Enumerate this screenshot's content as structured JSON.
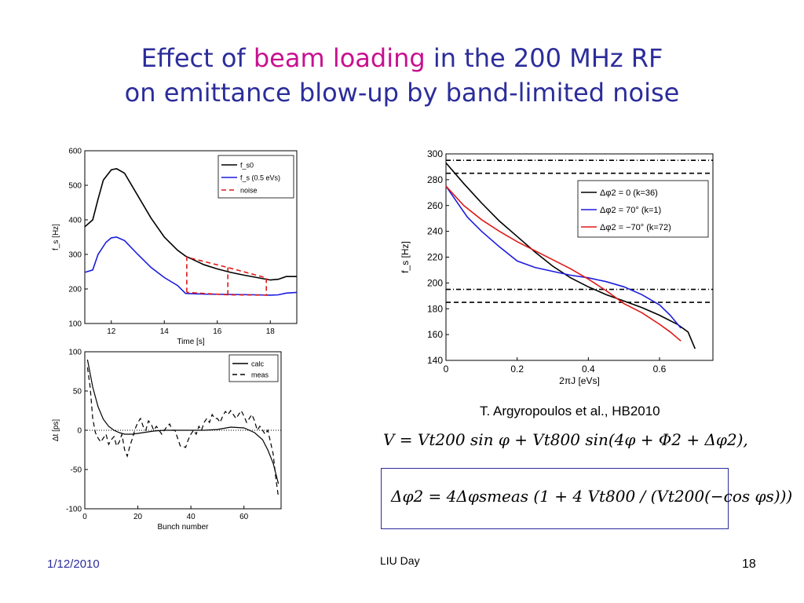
{
  "slide": {
    "title_line1_pre": "Effect of ",
    "title_line1_highlight": "beam loading",
    "title_line1_post": " in the 200 MHz RF",
    "title_line2": "on emittance blow-up by band-limited noise",
    "citation": "T. Argyropoulos et al., HB2010",
    "equation1": "V = Vt200 sin φ + Vt800 sin(4φ + Φ2 + Δφ2),",
    "equation2": "Δφ2 = 4Δφsmeas (1 + 4 Vt800 / (Vt200(−cos φs)))",
    "footer_date": "1/12/2010",
    "footer_center": "LIU Day",
    "footer_page": "18"
  },
  "chart_data": [
    {
      "type": "line",
      "xlabel": "Time [s]",
      "ylabel": "f_s [Hz]",
      "xlim": [
        11,
        19
      ],
      "ylim": [
        100,
        600
      ],
      "xticks": [
        12,
        14,
        16,
        18
      ],
      "yticks": [
        100,
        200,
        300,
        400,
        500,
        600
      ],
      "legend_position": "top-right",
      "series": [
        {
          "name": "f_s0",
          "color": "#000000",
          "dash": "solid",
          "x": [
            11.0,
            11.3,
            11.5,
            11.7,
            12.0,
            12.2,
            12.5,
            13.0,
            13.5,
            14.0,
            14.5,
            14.8,
            15.5,
            16.0,
            16.5,
            17.0,
            17.5,
            18.0,
            18.3,
            18.6,
            19.0
          ],
          "y": [
            380,
            400,
            460,
            515,
            545,
            548,
            535,
            470,
            405,
            350,
            312,
            295,
            270,
            258,
            248,
            240,
            233,
            226,
            228,
            236,
            236
          ]
        },
        {
          "name": "f_s (0.5 eVs)",
          "color": "#1c1cdf",
          "dash": "solid",
          "x": [
            11.0,
            11.3,
            11.5,
            11.8,
            12.0,
            12.2,
            12.5,
            13.0,
            13.5,
            14.0,
            14.5,
            14.8,
            15.5,
            16.5,
            17.5,
            18.0,
            18.3,
            18.6,
            19.0
          ],
          "y": [
            248,
            255,
            300,
            335,
            348,
            350,
            340,
            300,
            262,
            233,
            210,
            187,
            185,
            184,
            183,
            182,
            183,
            188,
            190
          ]
        },
        {
          "name": "noise",
          "color": "#e01818",
          "dash": "dashed",
          "x": [
            14.85,
            14.85,
            16.4,
            17.85,
            17.85,
            16.4,
            14.85
          ],
          "y": [
            190,
            292,
            262,
            232,
            182,
            183,
            190
          ]
        },
        {
          "name": "",
          "color": "#e01818",
          "dash": "dashed",
          "x": [
            16.4,
            16.4
          ],
          "y": [
            183,
            262
          ]
        }
      ]
    },
    {
      "type": "line",
      "xlabel": "Bunch number",
      "ylabel": "Δt [ps]",
      "xlim": [
        0,
        74
      ],
      "ylim": [
        -100,
        100
      ],
      "xticks": [
        0,
        20,
        40,
        60
      ],
      "yticks": [
        -100,
        -50,
        0,
        50,
        100
      ],
      "legend_position": "top-right",
      "series": [
        {
          "name": "calc",
          "color": "#000000",
          "dash": "solid",
          "x": [
            1,
            3,
            5,
            7,
            9,
            11,
            13,
            15,
            18,
            22,
            26,
            30,
            35,
            40,
            45,
            50,
            55,
            60,
            64,
            67,
            69,
            71,
            73
          ],
          "y": [
            90,
            55,
            30,
            14,
            5,
            0,
            -3,
            -5,
            -5,
            -3,
            -1,
            0,
            0,
            0,
            0,
            1,
            4,
            3,
            -3,
            -12,
            -25,
            -42,
            -68
          ]
        },
        {
          "name": "meas",
          "color": "#000000",
          "dash": "dashed",
          "x": [
            1,
            2,
            3,
            4,
            5,
            6,
            7,
            8,
            9,
            10,
            11,
            12,
            13,
            14,
            15,
            16,
            17,
            18,
            19,
            20,
            21,
            22,
            23,
            24,
            25,
            26,
            27,
            28,
            29,
            30,
            31,
            32,
            33,
            34,
            35,
            36,
            37,
            38,
            39,
            40,
            41,
            42,
            43,
            44,
            45,
            46,
            47,
            48,
            49,
            50,
            51,
            52,
            53,
            54,
            55,
            56,
            57,
            58,
            59,
            60,
            61,
            62,
            63,
            64,
            65,
            66,
            67,
            68,
            69,
            70,
            71,
            72,
            73
          ],
          "y": [
            80,
            55,
            15,
            -3,
            -10,
            -15,
            -10,
            -5,
            -18,
            -12,
            -8,
            -20,
            -15,
            -5,
            -25,
            -33,
            -20,
            -10,
            2,
            10,
            15,
            5,
            0,
            12,
            8,
            0,
            5,
            0,
            -5,
            0,
            5,
            8,
            0,
            0,
            -10,
            -20,
            -20,
            -22,
            -12,
            -5,
            0,
            -5,
            5,
            0,
            10,
            15,
            10,
            20,
            15,
            15,
            10,
            18,
            24,
            20,
            25,
            20,
            15,
            20,
            25,
            18,
            10,
            15,
            20,
            12,
            0,
            5,
            0,
            -5,
            0,
            -15,
            -30,
            -60,
            -85
          ]
        }
      ]
    },
    {
      "type": "line",
      "xlabel": "2πJ [eVs]",
      "ylabel": "f_s [Hz]",
      "xlim": [
        0,
        0.75
      ],
      "ylim": [
        140,
        300
      ],
      "xticks": [
        0,
        0.2,
        0.4,
        0.6
      ],
      "yticks": [
        140,
        160,
        180,
        200,
        220,
        240,
        260,
        280,
        300
      ],
      "legend_position": "top-right",
      "hlines": [
        {
          "y": 295,
          "style": "dash-dot"
        },
        {
          "y": 285,
          "style": "dashed"
        },
        {
          "y": 195,
          "style": "dash-dot"
        },
        {
          "y": 185,
          "style": "dashed"
        }
      ],
      "series": [
        {
          "name": "Δφ2 = 0 (k=36)",
          "color": "#000000",
          "dash": "solid",
          "x": [
            0.0,
            0.05,
            0.1,
            0.15,
            0.2,
            0.25,
            0.3,
            0.35,
            0.4,
            0.45,
            0.5,
            0.55,
            0.6,
            0.65,
            0.68,
            0.7
          ],
          "y": [
            293,
            277,
            262,
            248,
            236,
            224,
            213,
            204,
            197,
            191,
            186,
            181,
            175,
            168,
            162,
            149
          ]
        },
        {
          "name": "Δφ2 = 70° (k=1)",
          "color": "#1c1cdf",
          "dash": "solid",
          "x": [
            0.0,
            0.03,
            0.06,
            0.1,
            0.15,
            0.2,
            0.25,
            0.3,
            0.35,
            0.4,
            0.45,
            0.5,
            0.55,
            0.6,
            0.63,
            0.66
          ],
          "y": [
            275,
            263,
            251,
            240,
            228,
            217,
            212,
            209,
            206,
            204,
            201,
            197,
            191,
            183,
            175,
            165
          ]
        },
        {
          "name": "Δφ2 = −70° (k=72)",
          "color": "#e01818",
          "dash": "solid",
          "x": [
            0.0,
            0.05,
            0.1,
            0.15,
            0.2,
            0.25,
            0.3,
            0.35,
            0.4,
            0.45,
            0.5,
            0.55,
            0.6,
            0.63,
            0.66
          ],
          "y": [
            275,
            260,
            249,
            240,
            232,
            225,
            218,
            211,
            203,
            194,
            184,
            177,
            168,
            162,
            155
          ]
        }
      ]
    }
  ]
}
